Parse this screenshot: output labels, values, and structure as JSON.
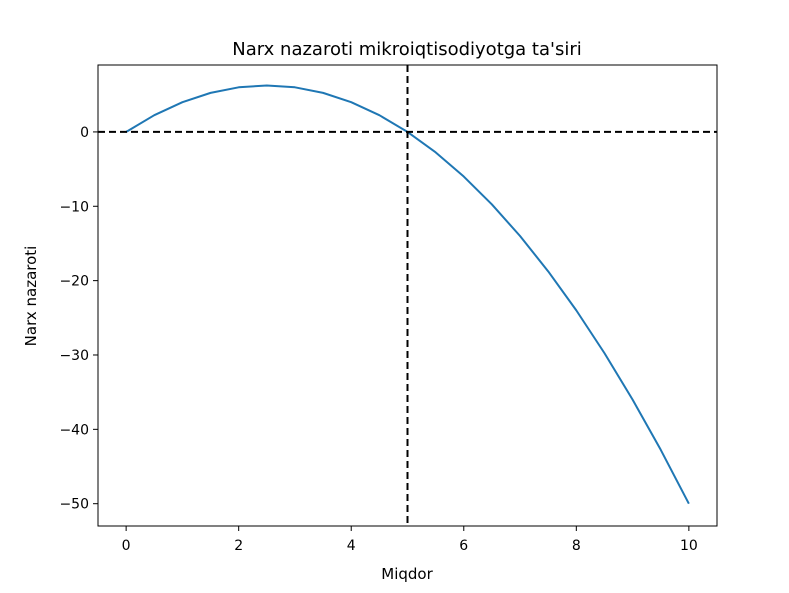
{
  "chart_data": {
    "type": "line",
    "title": "Narx nazaroti mikroiqtisodiyotga ta'siri",
    "xlabel": "Miqdor",
    "ylabel": "Narx nazaroti",
    "xlim": [
      -0.5,
      10.5
    ],
    "ylim": [
      -53,
      9
    ],
    "xticks": [
      0,
      2,
      4,
      6,
      8,
      10
    ],
    "yticks": [
      0,
      -10,
      -20,
      -30,
      -40,
      -50
    ],
    "xtick_labels": [
      "0",
      "2",
      "4",
      "6",
      "8",
      "10"
    ],
    "ytick_labels": [
      "0",
      "−10",
      "−20",
      "−30",
      "−40",
      "−50"
    ],
    "grid": false,
    "series": [
      {
        "color": "#1f77b4",
        "x": [
          0,
          0.5,
          1,
          1.5,
          2,
          2.5,
          3,
          3.5,
          4,
          4.5,
          5,
          5.5,
          6,
          6.5,
          7,
          7.5,
          8,
          8.5,
          9,
          9.5,
          10
        ],
        "y": [
          0,
          2.25,
          4,
          5.25,
          6,
          6.25,
          6,
          5.25,
          4,
          2.25,
          0,
          -2.75,
          -6,
          -9.75,
          -14,
          -18.75,
          -24,
          -29.75,
          -36,
          -42.75,
          -50
        ]
      }
    ],
    "reference_lines": [
      {
        "orientation": "horizontal",
        "value": 0,
        "style": "dashed",
        "color": "#000000"
      },
      {
        "orientation": "vertical",
        "value": 5,
        "style": "dashed",
        "color": "#000000"
      }
    ]
  }
}
